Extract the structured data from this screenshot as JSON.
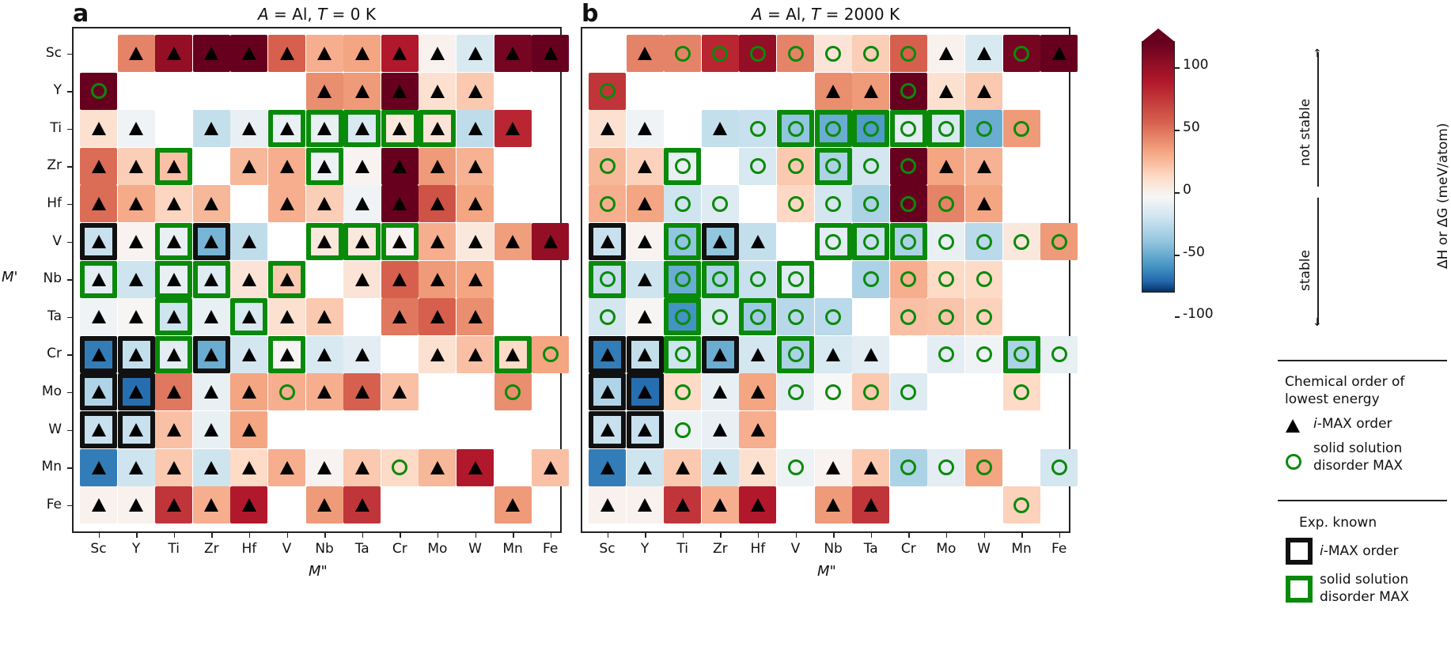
{
  "chart_data": {
    "type": "heatmap",
    "colormap": "RdBu_r",
    "value_unit": "meV/atom",
    "colorbar": {
      "label": "ΔH or ΔG (meV/atom)",
      "ticks": [
        100,
        50,
        0,
        -50,
        -100
      ],
      "range": [
        -120,
        120
      ],
      "extend": "max",
      "annotations": [
        "not stable",
        "stable"
      ]
    },
    "xlabel": "M\"",
    "ylabel": "M'",
    "x_categories": [
      "Sc",
      "Y",
      "Ti",
      "Zr",
      "Hf",
      "V",
      "Nb",
      "Ta",
      "Cr",
      "Mo",
      "W",
      "Mn",
      "Fe"
    ],
    "y_categories": [
      "Sc",
      "Y",
      "Ti",
      "Zr",
      "Hf",
      "V",
      "Nb",
      "Ta",
      "Cr",
      "Mo",
      "W",
      "Mn",
      "Fe"
    ],
    "cell_encoding": "value|marker|frame ; marker t=i-MAX triangle, o=solid-solution circle ; frame g=green (exp. solid solution), k=black (exp. i-MAX) ; null=no data",
    "panels": [
      {
        "letter": "a",
        "title": "A = Al, T = 0 K",
        "grid": [
          [
            null,
            "60|t",
            "110|t",
            "130|t",
            "130|t",
            "75|t",
            "40|t",
            "45|t",
            "100|t",
            "3|t",
            "-12|t",
            "120|t",
            "130|t"
          ],
          [
            "130|o",
            null,
            null,
            null,
            null,
            null,
            "55|t",
            "50|t",
            "130|t",
            "12|t",
            "25|t",
            null,
            null
          ],
          [
            "12|t",
            "-3|t",
            null,
            "-20|t",
            "-6|t",
            "-5|t|g",
            "-6|t|g",
            "-12|t|g",
            "8|t|g",
            "10|t|g",
            "-22|t",
            "95|t",
            null
          ],
          [
            "70|t",
            "22|t",
            "30|t|g",
            null,
            "35|t",
            "40|t",
            "-4|t|g",
            "2|t",
            "130|t",
            "50|t",
            "38|t",
            null,
            null
          ],
          [
            "70|t",
            "42|t",
            "18|t",
            "35|t",
            null,
            "40|t",
            "22|t",
            "-3|t",
            "130|t",
            "80|t",
            "45|t",
            null,
            null
          ],
          [
            "-18|t|k",
            "2|t",
            "-6|t|g",
            "-50|t|k",
            "-22|t",
            null,
            "8|t|g",
            "8|t|g",
            "2|t|g",
            "40|t",
            "8|t",
            "48|t",
            "110|t"
          ],
          [
            "-8|t|g",
            "-16|t",
            "-6|t|g",
            "-10|t|g",
            "10|t",
            "25|t|g",
            null,
            "10|t",
            "75|t",
            "50|t",
            "45|t",
            null,
            null
          ],
          [
            "-3|t",
            "1|t",
            "-16|t|g",
            "-6|t",
            "-12|t|g",
            "12|t",
            "25|t",
            null,
            "65|t",
            "75|t",
            "55|t",
            null,
            null
          ],
          [
            "-85|t|k",
            "-20|t|k",
            "-8|t|g",
            "-55|t|k",
            "-14|t",
            "1|t|g",
            "-12|t",
            "-8|t",
            null,
            "12|t",
            "30|t",
            "15|t|g",
            "45|o"
          ],
          [
            "-28|t|k",
            "-95|t|k",
            "65|t",
            "-6|t",
            "45|t",
            "40|o",
            "40|t",
            "75|t",
            "30|t",
            null,
            null,
            "55|o",
            null
          ],
          [
            "-18|t|k",
            "-18|t|k",
            "30|t",
            "-6|t",
            "45|t",
            null,
            null,
            null,
            null,
            null,
            null,
            null,
            null
          ],
          [
            "-85|t",
            "-16|t",
            "25|t",
            "-16|t",
            "15|t",
            "40|t",
            "2|t",
            "25|t",
            "15|o",
            "35|t",
            "100|t",
            null,
            "30|t"
          ],
          [
            "3|t",
            "3|t",
            "90|t",
            "40|t",
            "100|t",
            null,
            "50|t",
            "90|t",
            null,
            null,
            null,
            "50|t",
            null
          ]
        ]
      },
      {
        "letter": "b",
        "title": "A = Al, T = 2000 K",
        "grid": [
          [
            null,
            "60|t",
            "60|o",
            "95|o",
            "110|o",
            "60|o",
            "10|o",
            "22|o",
            "75|o",
            "3|t",
            "-12|t",
            "120|o",
            "130|t"
          ],
          [
            "90|o",
            null,
            null,
            null,
            null,
            null,
            "55|t",
            "50|t",
            "130|o",
            "12|t",
            "25|t",
            null,
            null
          ],
          [
            "12|t",
            "-3|t",
            null,
            "-20|t",
            "-18|o",
            "-40|o|g",
            "-55|o|g",
            "-65|o|g",
            "-8|o|g",
            "-12|o|g",
            "-55|o",
            "50|o",
            null
          ],
          [
            "35|o",
            "20|t",
            "-6|o|g",
            null,
            "-12|o",
            "25|o",
            "-30|o|g",
            "-14|o",
            "130|o",
            "45|t",
            "38|t",
            null,
            null
          ],
          [
            "40|o",
            "45|t",
            "-16|o",
            "-10|o",
            null,
            "16|o",
            "-14|o",
            "-30|o",
            "130|o",
            "60|o",
            "45|t",
            null,
            null
          ],
          [
            "-18|t|k",
            "2|t",
            "-40|o|g",
            "-40|t|k",
            "-20|t",
            null,
            "-8|o|g",
            "-18|o|g",
            "-30|o|g",
            "-6|o",
            "-24|o",
            "8|o",
            "50|o"
          ],
          [
            "-20|o|g",
            "-16|t",
            "-55|o|g",
            "-30|o|g",
            "-18|o",
            "-10|o|g",
            null,
            "-30|o",
            "40|o",
            "15|o",
            "15|o",
            null,
            null
          ],
          [
            "-14|o",
            "1|t",
            "-70|o|g",
            "-12|o",
            "-35|o|g",
            "-25|o",
            "-24|o",
            null,
            "30|o",
            "28|o",
            "20|o",
            null,
            null
          ],
          [
            "-85|t|k",
            "-20|t|k",
            "-16|o|g",
            "-55|t|k",
            "-14|t",
            "-30|o|g",
            "-12|t",
            "-8|t",
            null,
            "-8|o",
            "-3|o",
            "-30|o|g",
            "-6|o"
          ],
          [
            "-28|t|k",
            "-95|t|k",
            "15|o",
            "-6|t",
            "45|t",
            "-8|o",
            "0|o",
            "25|o",
            "-10|o",
            null,
            null,
            "15|o",
            null
          ],
          [
            "-18|t|k",
            "-18|t|k",
            "-4|o",
            "-6|t",
            "40|t",
            null,
            null,
            null,
            null,
            null,
            null,
            null,
            null
          ],
          [
            "-85|t",
            "-16|t",
            "25|t",
            "-16|t",
            "12|t",
            "-4|o",
            "2|t",
            "25|t",
            "-30|o",
            "-8|o",
            "45|o",
            null,
            "-14|o"
          ],
          [
            "3|t",
            "3|t",
            "90|t",
            "40|t",
            "100|t",
            null,
            "50|t",
            "90|t",
            null,
            null,
            null,
            "20|o",
            null
          ]
        ]
      }
    ],
    "legend": {
      "marker_title": "Chemical order of lowest energy",
      "markers": [
        {
          "symbol": "triangle",
          "label_italic": "i",
          "label": "-MAX order",
          "color": "#000000"
        },
        {
          "symbol": "circle",
          "label": "solid solution disorder MAX",
          "color": "#0a8a0a"
        }
      ],
      "frame_title": "Exp. known",
      "frames": [
        {
          "color": "#111111",
          "label_italic": "i",
          "label": "-MAX order"
        },
        {
          "color": "#0a8a0a",
          "label": "solid solution disorder MAX"
        }
      ]
    }
  },
  "text": {
    "panel_a_letter": "a",
    "panel_b_letter": "b",
    "title_A": "A",
    "title_eq1": " = Al, ",
    "title_T": "T",
    "title_a_rest": " = 0 K",
    "title_b_rest": " = 2000 K",
    "ylabel": "M'",
    "xlabel": "M\"",
    "cbar_label": "ΔH or ΔG (meV/atom)",
    "cbar_ticks": [
      "100",
      "50",
      "0",
      "-50",
      "-100"
    ],
    "not_stable": "not stable",
    "stable": "stable",
    "legend_title_1": "Chemical order of",
    "legend_title_2": "lowest energy",
    "legend_i": "i",
    "legend_imax": "-MAX order",
    "legend_ss_1": "solid solution",
    "legend_ss_2": "disorder MAX",
    "legend_exp": "Exp. known"
  }
}
